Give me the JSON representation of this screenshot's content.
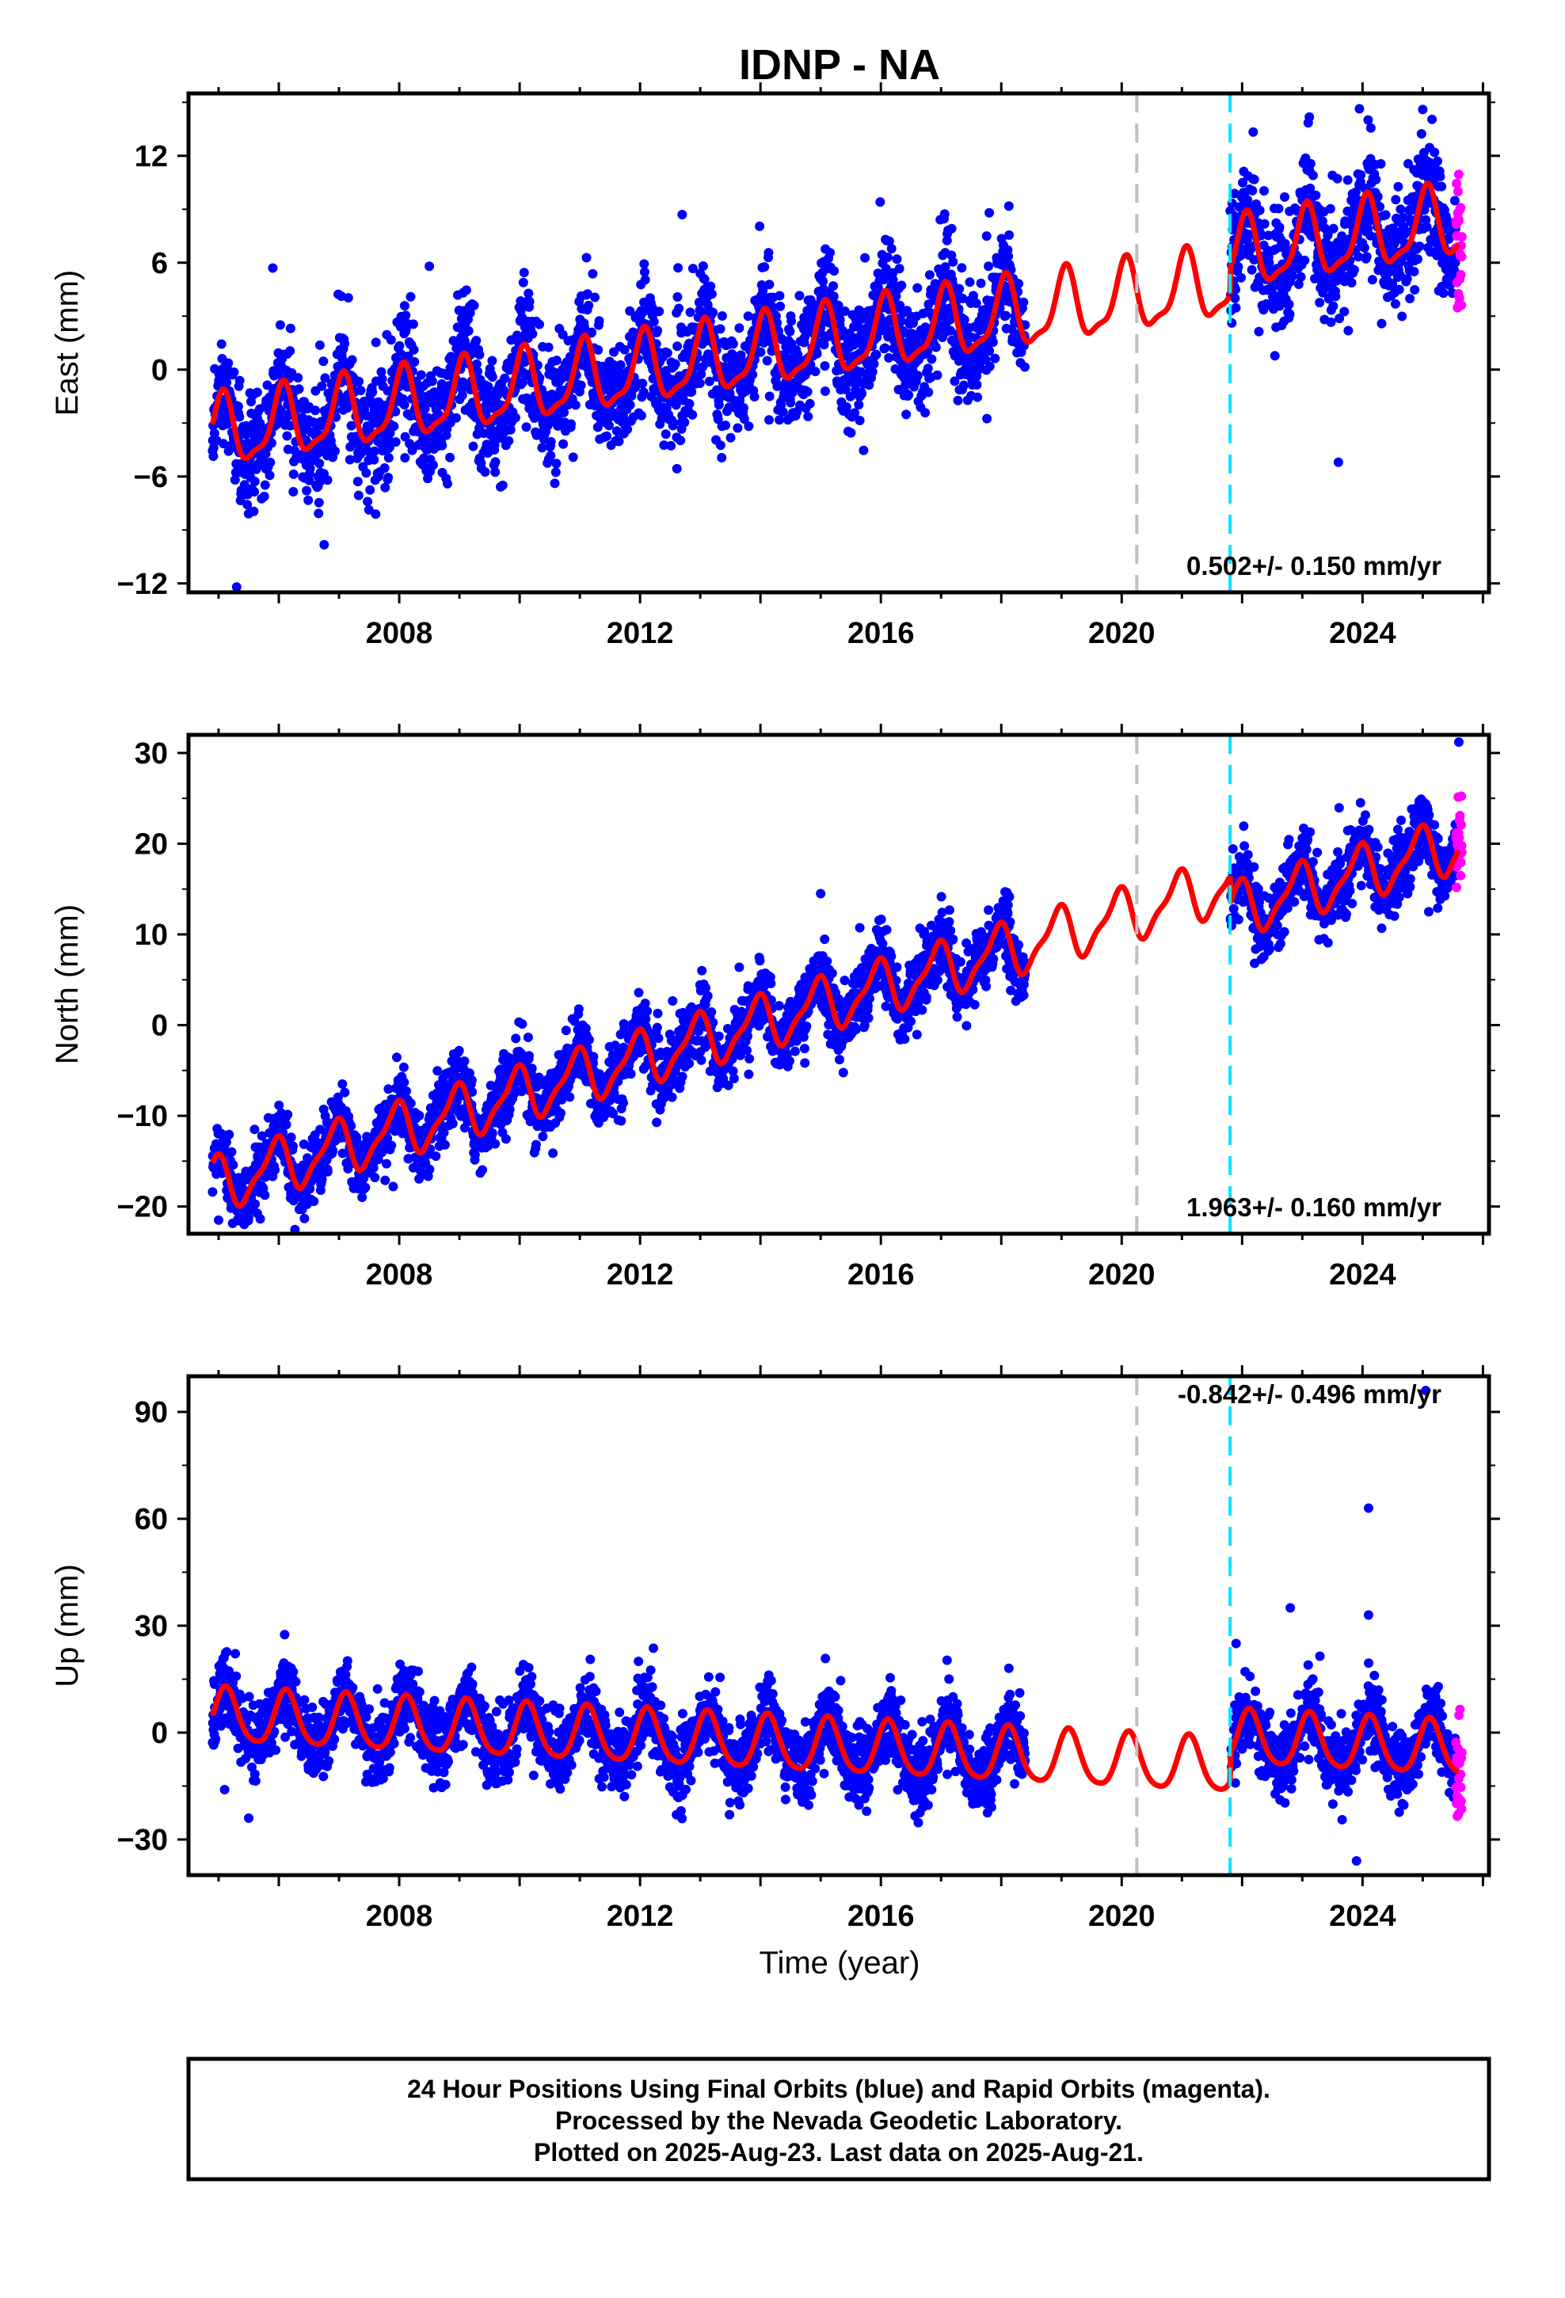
{
  "title": "IDNP - NA",
  "x_axis_label": "Time (year)",
  "footer": {
    "line1": "24 Hour Positions Using Final Orbits (blue) and Rapid Orbits (magenta).",
    "line2": "Processed by the Nevada Geodetic Laboratory.",
    "line3": "Plotted on 2025-Aug-23. Last data on 2025-Aug-21."
  },
  "colors": {
    "final_orbits": "#0000ff",
    "rapid_orbits": "#ff00ff",
    "model_fit": "#ff0000",
    "event_line_gray": "#bfbfbf",
    "event_line_cyan": "#00e5ff"
  },
  "chart_data": [
    {
      "type": "scatter",
      "component": "east",
      "ylabel": "East (mm)",
      "xlim": [
        2004.5,
        2026.1
      ],
      "ylim": [
        -12.5,
        15.5
      ],
      "yticks": [
        -12,
        -6,
        0,
        6,
        12
      ],
      "xticks": [
        2008,
        2012,
        2016,
        2020,
        2024
      ],
      "rate_text": "0.502+/- 0.150 mm/yr",
      "rate_mm_per_yr": 0.502,
      "rate_sigma_mm_per_yr": 0.15,
      "vertical_lines": [
        {
          "x": 2020.25,
          "color": "gray",
          "style": "dashed"
        },
        {
          "x": 2021.8,
          "color": "cyan",
          "style": "dashed"
        }
      ],
      "data_gap": [
        2018.4,
        2021.8
      ],
      "final_orbits_range": [
        2004.9,
        2025.55
      ],
      "rapid_orbits_range": [
        2025.55,
        2025.65
      ],
      "model": {
        "offset": -3.6,
        "trend": 0.502,
        "annual_amp": 1.9,
        "annual_phase": 1.2,
        "semiannual_amp": 0.6,
        "semiannual_phase": 0.4,
        "step_at": 2021.8,
        "step": 1.5
      },
      "scatter_sigma": 1.3,
      "outliers": [
        {
          "x": 2005.3,
          "y": -12.2
        },
        {
          "x": 2005.9,
          "y": 5.7
        },
        {
          "x": 2008.5,
          "y": 5.8
        },
        {
          "x": 2012.7,
          "y": 8.7
        },
        {
          "x": 2017.8,
          "y": 8.8
        },
        {
          "x": 2023.5,
          "y": 10.9
        },
        {
          "x": 2023.6,
          "y": -5.2
        },
        {
          "x": 2025.0,
          "y": 14.6
        }
      ]
    },
    {
      "type": "scatter",
      "component": "north",
      "ylabel": "North (mm)",
      "xlim": [
        2004.5,
        2026.1
      ],
      "ylim": [
        -23,
        32
      ],
      "yticks": [
        -20,
        -10,
        0,
        10,
        20,
        30
      ],
      "xticks": [
        2008,
        2012,
        2016,
        2020,
        2024
      ],
      "rate_text": "1.963+/- 0.160 mm/yr",
      "rate_mm_per_yr": 1.963,
      "rate_sigma_mm_per_yr": 0.16,
      "vertical_lines": [
        {
          "x": 2020.25,
          "color": "gray",
          "style": "dashed"
        },
        {
          "x": 2021.8,
          "color": "cyan",
          "style": "dashed"
        }
      ],
      "data_gap": [
        2018.4,
        2021.8
      ],
      "final_orbits_range": [
        2004.9,
        2025.55
      ],
      "rapid_orbits_range": [
        2025.55,
        2025.65
      ],
      "model": {
        "offset": -17.5,
        "trend": 1.963,
        "annual_amp": 2.8,
        "annual_phase": 2.0,
        "semiannual_amp": 0.9,
        "semiannual_phase": 1.0,
        "step_at": 2021.8,
        "step": -3.0
      },
      "scatter_sigma": 1.5,
      "outliers": [
        {
          "x": 2005.0,
          "y": -21.5
        },
        {
          "x": 2007.9,
          "y": -17.8
        },
        {
          "x": 2015.0,
          "y": 14.5
        },
        {
          "x": 2025.1,
          "y": 12.5
        },
        {
          "x": 2025.6,
          "y": 31.2
        }
      ]
    },
    {
      "type": "scatter",
      "component": "up",
      "ylabel": "Up (mm)",
      "xlim": [
        2004.5,
        2026.1
      ],
      "ylim": [
        -40,
        100
      ],
      "yticks": [
        -30,
        0,
        30,
        60,
        90
      ],
      "xticks": [
        2008,
        2012,
        2016,
        2020,
        2024
      ],
      "rate_text": "-0.842+/- 0.496 mm/yr",
      "rate_mm_per_yr": -0.842,
      "rate_sigma_mm_per_yr": 0.496,
      "vertical_lines": [
        {
          "x": 2020.25,
          "color": "gray",
          "style": "dashed"
        },
        {
          "x": 2021.8,
          "color": "cyan",
          "style": "dashed"
        }
      ],
      "data_gap": [
        2018.4,
        2021.8
      ],
      "final_orbits_range": [
        2004.9,
        2025.55
      ],
      "rapid_orbits_range": [
        2025.55,
        2025.65
      ],
      "model": {
        "offset": 4.5,
        "trend": -0.842,
        "annual_amp": 7.5,
        "annual_phase": 0.8,
        "semiannual_amp": 1.2,
        "semiannual_phase": 0.2,
        "step_at": 2021.8,
        "step": 8.0
      },
      "scatter_sigma": 4.0,
      "outliers": [
        {
          "x": 2005.5,
          "y": -24
        },
        {
          "x": 2005.1,
          "y": -16
        },
        {
          "x": 2021.9,
          "y": 25
        },
        {
          "x": 2022.8,
          "y": 35
        },
        {
          "x": 2023.9,
          "y": -36
        },
        {
          "x": 2024.1,
          "y": 63
        },
        {
          "x": 2024.1,
          "y": 33
        },
        {
          "x": 2025.05,
          "y": 96
        }
      ]
    }
  ]
}
